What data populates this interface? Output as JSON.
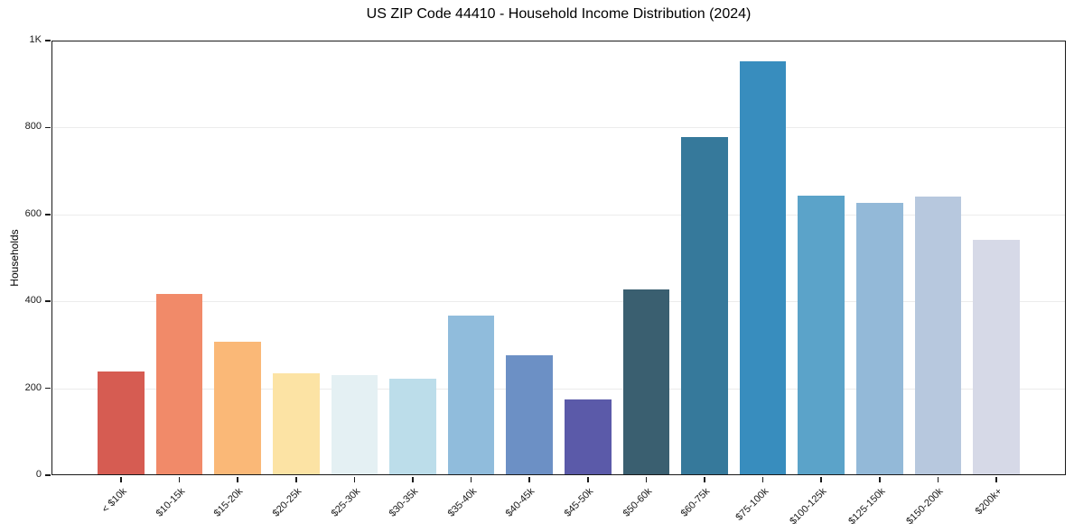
{
  "chart_data": {
    "type": "bar",
    "title": "US ZIP Code 44410 - Household Income Distribution (2024)",
    "xlabel": "",
    "ylabel": "Households",
    "categories": [
      "< $10k",
      "$10-15k",
      "$15-20k",
      "$20-25k",
      "$25-30k",
      "$30-35k",
      "$35-40k",
      "$40-45k",
      "$45-50k",
      "$50-60k",
      "$60-75k",
      "$75-100k",
      "$100-125k",
      "$125-150k",
      "$150-200k",
      "$200k+"
    ],
    "values": [
      238,
      417,
      307,
      234,
      230,
      222,
      368,
      276,
      175,
      427,
      777,
      952,
      644,
      627,
      641,
      541
    ],
    "bar_colors": [
      "#D65C52",
      "#F18A69",
      "#FAB877",
      "#FCE3A4",
      "#E4F0F3",
      "#BCDDEA",
      "#90BCDC",
      "#6C90C5",
      "#5B5AA9",
      "#3A5F70",
      "#36799B",
      "#388DBE",
      "#5BA3C9",
      "#93B9D8",
      "#B7C8DE",
      "#D6D9E7"
    ],
    "ylim": [
      0,
      1000
    ],
    "yticks": [
      {
        "value": 0,
        "label": "0"
      },
      {
        "value": 200,
        "label": "200"
      },
      {
        "value": 400,
        "label": "400"
      },
      {
        "value": 600,
        "label": "600"
      },
      {
        "value": 800,
        "label": "800"
      },
      {
        "value": 1000,
        "label": "1K"
      }
    ],
    "grid": "horizontal",
    "grid_color": "#ECECEC",
    "spine_color": "#1a1a1a",
    "background": "#FFFFFF",
    "legend": "none"
  }
}
